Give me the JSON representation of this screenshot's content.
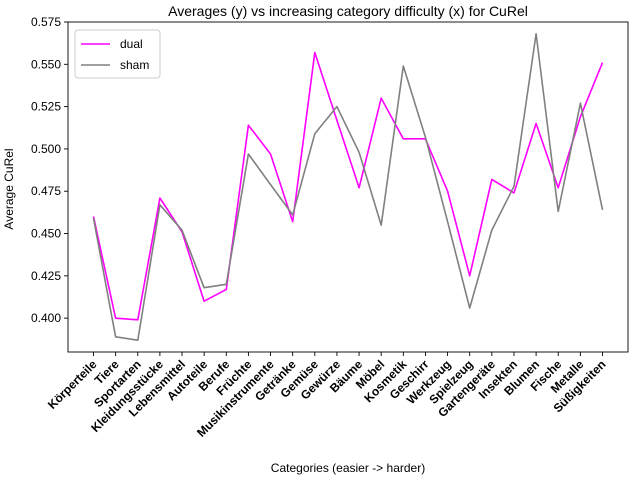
{
  "chart_data": {
    "type": "line",
    "title": "Averages (y) vs increasing category difficulty (x) for CuRel",
    "xlabel": "Categories (easier -> harder)",
    "ylabel": "Average CuRel",
    "ylim": [
      0.38,
      0.575
    ],
    "yticks": [
      "0.400",
      "0.425",
      "0.450",
      "0.475",
      "0.500",
      "0.525",
      "0.550",
      "0.575"
    ],
    "ytick_values": [
      0.4,
      0.425,
      0.45,
      0.475,
      0.5,
      0.525,
      0.55,
      0.575
    ],
    "grid": false,
    "legend_position": "top-left",
    "categories": [
      "Körperteile",
      "Tiere",
      "Sportarten",
      "Kleidungsstücke",
      "Lebensmittel",
      "Autoteile",
      "Berufe",
      "Früchte",
      "Musikinstrumente",
      "Getränke",
      "Gemüse",
      "Gewürze",
      "Bäume",
      "Möbel",
      "Kosmetik",
      "Geschirr",
      "Werkzeug",
      "Spielzeug",
      "Gartengeräte",
      "Insekten",
      "Blumen",
      "Fische",
      "Metalle",
      "Süßigkeiten"
    ],
    "series": [
      {
        "name": "dual",
        "color": "#ff00ff",
        "values": [
          0.46,
          0.4,
          0.399,
          0.471,
          0.451,
          0.41,
          0.417,
          0.514,
          0.497,
          0.457,
          0.557,
          0.517,
          0.477,
          0.53,
          0.506,
          0.506,
          0.475,
          0.425,
          0.482,
          0.474,
          0.515,
          0.477,
          0.519,
          0.551
        ]
      },
      {
        "name": "sham",
        "color": "#808080",
        "values": [
          0.459,
          0.389,
          0.387,
          0.467,
          0.452,
          0.418,
          0.42,
          0.497,
          0.479,
          0.461,
          0.509,
          0.525,
          0.498,
          0.455,
          0.549,
          0.507,
          0.457,
          0.406,
          0.452,
          0.478,
          0.568,
          0.463,
          0.527,
          0.464
        ]
      }
    ]
  }
}
